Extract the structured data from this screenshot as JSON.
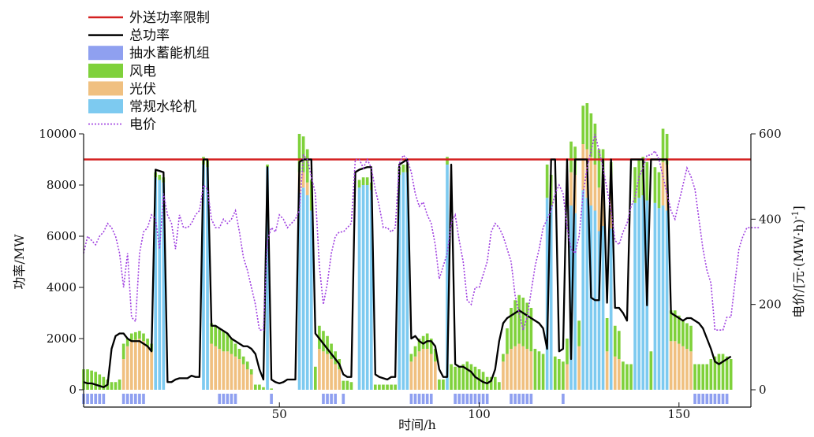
{
  "chart_data": {
    "type": "bar",
    "xlabel": "时间/h",
    "ylabel_left": "功率/MW",
    "ylabel_right": "电价/[元·(MW·h)",
    "ylabel_right_sup": "-1",
    "ylabel_right_tail": "]",
    "xlim": [
      1,
      168
    ],
    "ylim_left": [
      0,
      10000
    ],
    "ylim_right": [
      0,
      600
    ],
    "x_ticks": [
      50,
      100,
      150
    ],
    "y_ticks_left": [
      0,
      2000,
      4000,
      6000,
      8000,
      10000
    ],
    "y_ticks_right": [
      0,
      200,
      400,
      600
    ],
    "legend": {
      "position": "top-left",
      "entries": [
        {
          "label": "外送功率限制",
          "type": "line",
          "color": "#d42020"
        },
        {
          "label": "总功率",
          "type": "line",
          "color": "#000000"
        },
        {
          "label": "抽水蓄能机组",
          "type": "box",
          "color": "#8fa0f0"
        },
        {
          "label": "风电",
          "type": "box",
          "color": "#7fd13b"
        },
        {
          "label": "光伏",
          "type": "box",
          "color": "#f0c080"
        },
        {
          "label": "常规水轮机",
          "type": "box",
          "color": "#7dcaf0"
        },
        {
          "label": "电价",
          "type": "dotted-line",
          "color": "#a040e0"
        }
      ]
    },
    "export_limit": 9000,
    "pumped_storage_hours": [
      1,
      2,
      3,
      4,
      5,
      6,
      11,
      12,
      13,
      14,
      15,
      16,
      35,
      36,
      37,
      38,
      39,
      48,
      61,
      62,
      63,
      64,
      66,
      83,
      84,
      85,
      86,
      87,
      88,
      94,
      95,
      96,
      97,
      98,
      99,
      100,
      101,
      102,
      108,
      109,
      110,
      111,
      112,
      113,
      121,
      154,
      155,
      156,
      157,
      158,
      159,
      160,
      161,
      162
    ],
    "series_order": [
      "常规水轮机",
      "光伏",
      "风电"
    ],
    "hydro": [
      0,
      0,
      0,
      0,
      0,
      0,
      0,
      0,
      0,
      0,
      0,
      0,
      0,
      0,
      0,
      0,
      0,
      0,
      8300,
      8200,
      8100,
      0,
      0,
      0,
      0,
      0,
      0,
      0,
      0,
      0,
      8800,
      8700,
      0,
      0,
      0,
      0,
      0,
      0,
      0,
      0,
      0,
      0,
      0,
      0,
      0,
      0,
      8700,
      0,
      0,
      0,
      0,
      0,
      0,
      0,
      7700,
      7900,
      7600,
      7000,
      0,
      0,
      0,
      0,
      0,
      0,
      0,
      0,
      0,
      0,
      0,
      7900,
      8000,
      8000,
      7800,
      0,
      0,
      0,
      0,
      0,
      0,
      8400,
      8500,
      8500,
      0,
      0,
      0,
      0,
      0,
      0,
      0,
      0,
      0,
      8800,
      0,
      0,
      0,
      0,
      0,
      0,
      0,
      0,
      0,
      0,
      0,
      0,
      0,
      0,
      0,
      0,
      0,
      0,
      0,
      0,
      0,
      0,
      0,
      0,
      7500,
      7200,
      0,
      0,
      0,
      0,
      7200,
      6900,
      0,
      7800,
      7500,
      7200,
      7000,
      6200,
      6400,
      0,
      6300,
      0,
      0,
      0,
      0,
      0,
      7300,
      7500,
      7600,
      7400,
      0,
      7300,
      7100,
      7200,
      7000,
      0,
      0,
      0,
      0,
      0,
      0,
      0,
      0,
      0,
      0,
      0,
      0,
      0,
      0,
      0,
      0,
      0,
      0
    ],
    "solar": [
      0,
      0,
      0,
      0,
      0,
      0,
      0,
      0,
      0,
      0,
      1200,
      1700,
      1900,
      1950,
      2000,
      1900,
      1700,
      1500,
      0,
      0,
      0,
      0,
      0,
      0,
      0,
      0,
      0,
      0,
      0,
      0,
      0,
      0,
      1800,
      1700,
      1600,
      1500,
      1500,
      1400,
      1300,
      1200,
      1000,
      800,
      600,
      0,
      0,
      0,
      0,
      0,
      0,
      0,
      0,
      0,
      0,
      0,
      800,
      600,
      500,
      0,
      0,
      1600,
      1500,
      1400,
      1200,
      1000,
      800,
      0,
      0,
      0,
      0,
      0,
      0,
      0,
      0,
      0,
      0,
      0,
      0,
      0,
      0,
      0,
      0,
      0,
      1100,
      1300,
      1500,
      1600,
      1600,
      1400,
      1100,
      0,
      0,
      0,
      0,
      0,
      0,
      0,
      0,
      0,
      0,
      0,
      0,
      0,
      0,
      0,
      0,
      1100,
      1400,
      1600,
      1700,
      1800,
      1700,
      1600,
      1500,
      0,
      0,
      0,
      0,
      0,
      0,
      0,
      0,
      1000,
      1300,
      1500,
      1700,
      1800,
      1900,
      1900,
      1800,
      1700,
      1600,
      1500,
      1400,
      1300,
      1200,
      0,
      0,
      0,
      0,
      0,
      0,
      0,
      0,
      0,
      0,
      1700,
      1800,
      1900,
      1900,
      1800,
      1700,
      1600,
      1500,
      0,
      0,
      0,
      0,
      0,
      0,
      0,
      0,
      0,
      0
    ],
    "wind": [
      800,
      800,
      750,
      700,
      600,
      500,
      400,
      300,
      300,
      400,
      600,
      300,
      300,
      300,
      300,
      300,
      300,
      300,
      200,
      200,
      200,
      0,
      0,
      0,
      0,
      0,
      0,
      0,
      0,
      0,
      300,
      300,
      800,
      800,
      800,
      800,
      700,
      600,
      500,
      400,
      300,
      300,
      200,
      200,
      200,
      100,
      100,
      50,
      0,
      0,
      0,
      0,
      0,
      0,
      1500,
      1400,
      1300,
      1200,
      900,
      900,
      800,
      700,
      600,
      500,
      400,
      350,
      350,
      300,
      0,
      300,
      300,
      300,
      300,
      200,
      200,
      200,
      200,
      200,
      200,
      300,
      300,
      300,
      300,
      400,
      500,
      500,
      600,
      600,
      500,
      400,
      400,
      300,
      1000,
      900,
      900,
      1000,
      1100,
      1000,
      900,
      800,
      700,
      500,
      500,
      500,
      300,
      300,
      1000,
      1600,
      1800,
      1900,
      1900,
      1800,
      1700,
      1600,
      1500,
      1400,
      1300,
      1200,
      1300,
      1200,
      1100,
      1000,
      1200,
      1100,
      1000,
      1500,
      1800,
      1700,
      1600,
      1500,
      1400,
      1300,
      1200,
      1200,
      1100,
      1100,
      1000,
      1000,
      1400,
      1500,
      1500,
      1500,
      1500,
      1400,
      1400,
      1300,
      1200,
      1200,
      1200,
      1100,
      1000,
      1000,
      1000,
      1000,
      1000,
      1000,
      1000,
      1200,
      1300,
      1400,
      1400,
      1300,
      1200,
      1100,
      1000
    ],
    "total_power": [
      300,
      250,
      250,
      200,
      150,
      100,
      200,
      1600,
      2100,
      2200,
      2200,
      2000,
      1900,
      1900,
      1900,
      1800,
      1700,
      1500,
      8600,
      8550,
      8500,
      300,
      300,
      400,
      450,
      450,
      450,
      550,
      500,
      500,
      9000,
      9000,
      2500,
      2500,
      2400,
      2300,
      2200,
      2000,
      1900,
      1800,
      1700,
      1700,
      1600,
      1400,
      800,
      400,
      8700,
      400,
      300,
      250,
      300,
      400,
      400,
      400,
      8900,
      9000,
      9000,
      9000,
      2200,
      2000,
      1800,
      1600,
      1400,
      1200,
      1000,
      600,
      500,
      500,
      8500,
      8600,
      8650,
      8700,
      8700,
      600,
      500,
      450,
      400,
      500,
      500,
      8800,
      8900,
      9000,
      2000,
      2100,
      1900,
      1800,
      1900,
      1900,
      1700,
      800,
      500,
      500,
      8800,
      1000,
      900,
      900,
      800,
      700,
      500,
      400,
      300,
      250,
      350,
      800,
      1900,
      2600,
      2800,
      2900,
      3000,
      3100,
      3000,
      2900,
      2800,
      2700,
      2600,
      2400,
      1600,
      9000,
      9000,
      1500,
      1600,
      9000,
      1200,
      9000,
      9000,
      9000,
      9000,
      3600,
      3500,
      3500,
      9000,
      3400,
      9000,
      3200,
      3200,
      3000,
      2700,
      9000,
      9000,
      9000,
      9000,
      3300,
      9000,
      9000,
      9000,
      9000,
      9000,
      3000,
      2900,
      2800,
      2700,
      2800,
      2800,
      2700,
      2600,
      2400,
      2000,
      1600,
      1100,
      1000,
      1100,
      1200,
      1300
    ],
    "price": [
      320,
      360,
      350,
      340,
      360,
      370,
      390,
      380,
      360,
      320,
      240,
      320,
      170,
      160,
      320,
      370,
      380,
      410,
      400,
      330,
      460,
      410,
      390,
      330,
      410,
      380,
      380,
      390,
      410,
      420,
      480,
      470,
      400,
      380,
      380,
      400,
      390,
      400,
      420,
      370,
      310,
      280,
      240,
      200,
      140,
      140,
      350,
      380,
      370,
      410,
      400,
      380,
      390,
      400,
      420,
      550,
      540,
      500,
      460,
      290,
      200,
      250,
      320,
      360,
      370,
      370,
      380,
      390,
      540,
      540,
      520,
      540,
      520,
      470,
      430,
      380,
      380,
      370,
      380,
      530,
      550,
      540,
      510,
      460,
      430,
      440,
      410,
      390,
      340,
      260,
      290,
      320,
      390,
      410,
      350,
      300,
      210,
      200,
      240,
      240,
      270,
      300,
      370,
      390,
      380,
      360,
      330,
      300,
      220,
      180,
      140,
      170,
      230,
      290,
      330,
      380,
      400,
      420,
      460,
      480,
      460,
      380,
      330,
      320,
      360,
      460,
      520,
      560,
      600,
      560,
      520,
      470,
      420,
      350,
      340,
      370,
      390,
      430,
      450,
      500,
      520,
      550,
      550,
      560,
      540,
      500,
      460,
      420,
      400,
      440,
      480,
      520,
      500,
      470,
      400,
      330,
      280,
      250,
      140,
      140,
      140,
      170,
      170,
      250,
      330,
      360,
      380,
      380,
      380,
      380
    ]
  }
}
